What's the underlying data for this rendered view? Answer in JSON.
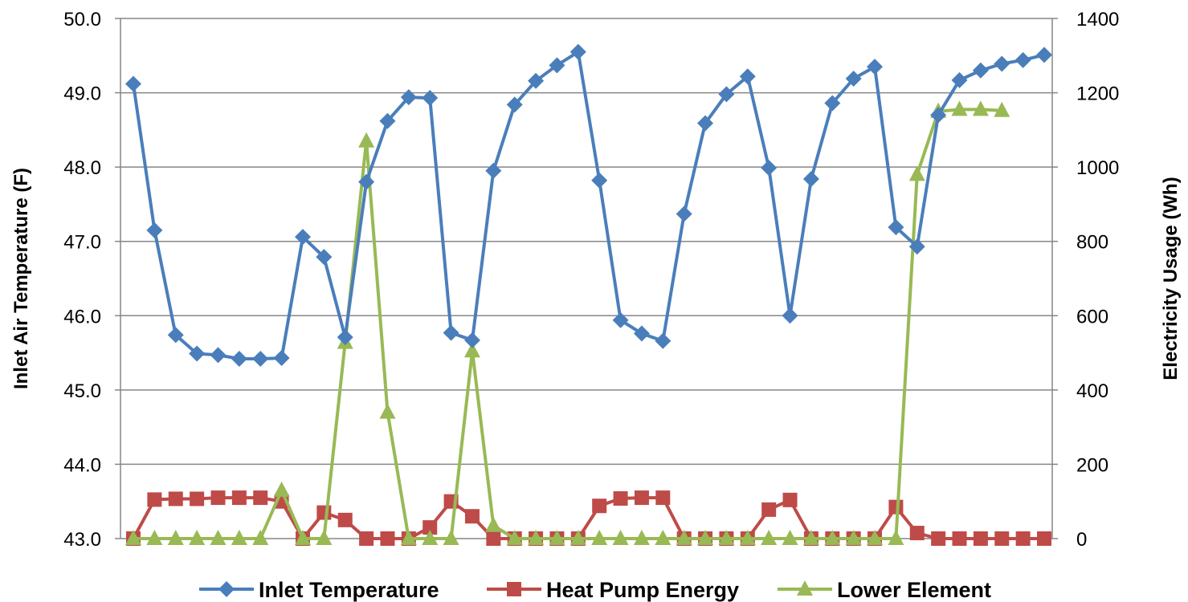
{
  "chart_data": {
    "type": "line",
    "title": "",
    "ylabel": "Inlet Air Temperature (F)",
    "y2label": "Electricity Usage (Wh)",
    "ylim": [
      43,
      50
    ],
    "y2lim": [
      0,
      1400
    ],
    "yticks": [
      "43.0",
      "44.0",
      "45.0",
      "46.0",
      "47.0",
      "48.0",
      "49.0",
      "50.0"
    ],
    "y2ticks": [
      "0",
      "200",
      "400",
      "600",
      "800",
      "1000",
      "1200",
      "1400"
    ],
    "grid": true,
    "legend": "bottom",
    "series": [
      {
        "name": "Inlet Temperature",
        "axis": "left",
        "color": "#4A7EBB",
        "marker": "diamond",
        "values": [
          49.12,
          47.15,
          45.74,
          45.49,
          45.47,
          45.42,
          45.42,
          45.43,
          47.06,
          46.79,
          45.71,
          47.8,
          48.62,
          48.94,
          48.93,
          45.77,
          45.67,
          47.95,
          48.84,
          49.16,
          49.37,
          49.55,
          47.82,
          45.94,
          45.76,
          45.66,
          47.37,
          48.59,
          48.98,
          49.22,
          47.99,
          46.0,
          47.84,
          48.86,
          49.19,
          49.35,
          47.19,
          46.93,
          48.7,
          49.17,
          49.3,
          49.39,
          49.44,
          49.51
        ]
      },
      {
        "name": "Heat Pump Energy",
        "axis": "right",
        "color": "#BE4B48",
        "marker": "square",
        "values": [
          0,
          105,
          107,
          107,
          110,
          110,
          110,
          100,
          0,
          70,
          50,
          0,
          0,
          0,
          30,
          100,
          60,
          0,
          0,
          0,
          0,
          0,
          88,
          108,
          110,
          110,
          0,
          0,
          0,
          0,
          78,
          104,
          0,
          0,
          0,
          0,
          85,
          15,
          0,
          0,
          0,
          0,
          0,
          0
        ]
      },
      {
        "name": "Lower Element",
        "axis": "right",
        "color": "#98B954",
        "marker": "triangle",
        "values": [
          0,
          0,
          0,
          0,
          0,
          0,
          0,
          130,
          0,
          0,
          528,
          1070,
          340,
          0,
          0,
          0,
          505,
          35,
          0,
          0,
          0,
          0,
          0,
          0,
          0,
          0,
          0,
          0,
          0,
          0,
          0,
          0,
          0,
          0,
          0,
          0,
          0,
          980,
          1150,
          1155,
          1155,
          1152,
          null,
          null
        ]
      }
    ]
  }
}
